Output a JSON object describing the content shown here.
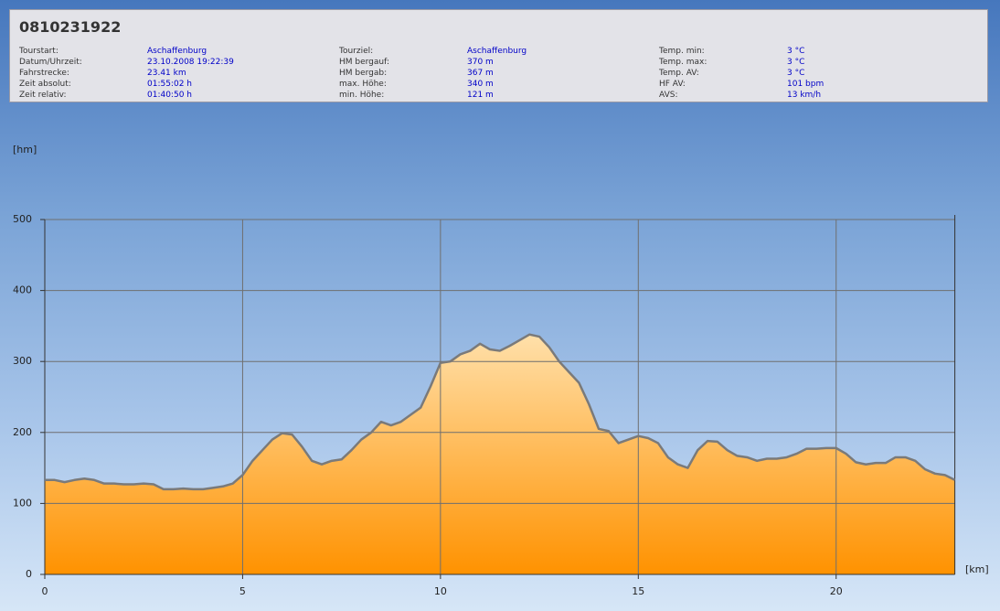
{
  "info": {
    "title": "0810231922",
    "columns": [
      [
        {
          "label": "Tourstart:",
          "value": "Aschaffenburg"
        },
        {
          "label": "Datum/Uhrzeit:",
          "value": "23.10.2008 19:22:39"
        },
        {
          "label": "Fahrstrecke:",
          "value": "23.41 km"
        },
        {
          "label": "Zeit absolut:",
          "value": "01:55:02 h"
        },
        {
          "label": "Zeit relativ:",
          "value": "01:40:50 h"
        }
      ],
      [
        {
          "label": "Tourziel:",
          "value": "Aschaffenburg"
        },
        {
          "label": "HM bergauf:",
          "value": "370 m"
        },
        {
          "label": "HM bergab:",
          "value": "367 m"
        },
        {
          "label": "max. Höhe:",
          "value": "340 m"
        },
        {
          "label": "min. Höhe:",
          "value": "121 m"
        }
      ],
      [
        {
          "label": "Temp. min:",
          "value": "3 °C"
        },
        {
          "label": "Temp. max:",
          "value": "3 °C"
        },
        {
          "label": "Temp. AV:",
          "value": "3 °C"
        },
        {
          "label": "HF AV:",
          "value": "101 bpm"
        },
        {
          "label": "AVS:",
          "value": "13 km/h"
        }
      ]
    ]
  },
  "chart_data": {
    "type": "area",
    "y_label": "[hm]",
    "x_label": "[km]",
    "x": [
      0,
      0.25,
      0.5,
      0.75,
      1,
      1.25,
      1.5,
      1.75,
      2,
      2.25,
      2.5,
      2.75,
      3,
      3.25,
      3.5,
      3.75,
      4,
      4.25,
      4.5,
      4.75,
      5,
      5.25,
      5.5,
      5.75,
      6,
      6.25,
      6.5,
      6.75,
      7,
      7.25,
      7.5,
      7.75,
      8,
      8.25,
      8.5,
      8.75,
      9,
      9.25,
      9.5,
      9.75,
      10,
      10.25,
      10.5,
      10.75,
      11,
      11.25,
      11.5,
      11.75,
      12,
      12.25,
      12.5,
      12.75,
      13,
      13.25,
      13.5,
      13.75,
      14,
      14.25,
      14.5,
      14.75,
      15,
      15.25,
      15.5,
      15.75,
      16,
      16.25,
      16.5,
      16.75,
      17,
      17.25,
      17.5,
      17.75,
      18,
      18.25,
      18.5,
      18.75,
      19,
      19.25,
      19.5,
      19.75,
      20,
      20.25,
      20.5,
      20.75,
      21,
      21.25,
      21.5,
      21.75,
      22,
      22.25,
      22.5,
      22.75,
      23
    ],
    "values": [
      133,
      133,
      130,
      133,
      135,
      133,
      128,
      128,
      127,
      127,
      128,
      127,
      120,
      120,
      121,
      120,
      120,
      122,
      124,
      128,
      140,
      160,
      175,
      190,
      199,
      197,
      180,
      160,
      155,
      160,
      162,
      175,
      190,
      200,
      215,
      210,
      215,
      225,
      235,
      265,
      298,
      300,
      310,
      315,
      325,
      317,
      315,
      322,
      330,
      338,
      335,
      320,
      300,
      285,
      270,
      240,
      205,
      202,
      185,
      190,
      195,
      192,
      185,
      165,
      155,
      150,
      175,
      188,
      187,
      175,
      167,
      165,
      160,
      163,
      163,
      165,
      170,
      177,
      177,
      178,
      178,
      170,
      158,
      155,
      157,
      157,
      165,
      165,
      160,
      148,
      142,
      140,
      133
    ],
    "line_color": "#7a7a7a",
    "fill_top": "#ffe0aa",
    "fill_bottom": "#ff9200",
    "grid": true,
    "xlim": [
      0,
      23
    ],
    "ylim": [
      0,
      500
    ],
    "xticks": [
      0,
      5,
      10,
      15,
      20
    ],
    "yticks": [
      0,
      100,
      200,
      300,
      400,
      500
    ]
  }
}
